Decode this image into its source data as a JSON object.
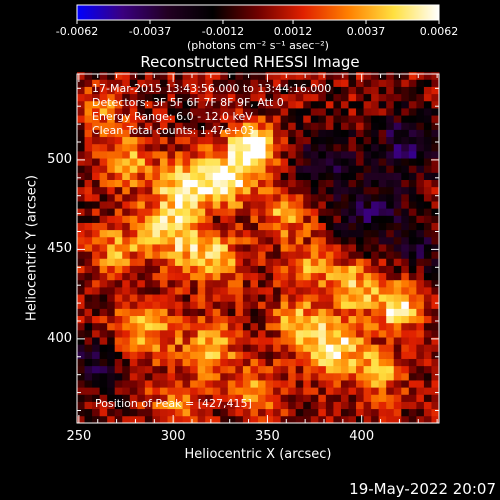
{
  "colorbar": {
    "ticks": [
      "-0.0062",
      "-0.0037",
      "-0.0012",
      "0.0012",
      "0.0037",
      "0.0062"
    ],
    "tick_values": [
      -0.0062,
      -0.0037,
      -0.0012,
      0.0012,
      0.0037,
      0.0062
    ],
    "units": "(photons cm⁻² s⁻¹ asec⁻²)",
    "colors": [
      "#0000ff",
      "#3a0080",
      "#220022",
      "#000000",
      "#700000",
      "#e02000",
      "#ff8000",
      "#ffe040",
      "#ffffff"
    ]
  },
  "chart_data": {
    "type": "heatmap",
    "title": "Reconstructed RHESSI Image",
    "xlabel": "Heliocentric X (arcsec)",
    "ylabel": "Heliocentric Y (arcsec)",
    "xlim": [
      249,
      441
    ],
    "ylim": [
      353,
      548
    ],
    "x_ticks": [
      250,
      300,
      350,
      400
    ],
    "y_ticks": [
      400,
      450,
      500
    ],
    "annotations": [
      "17-Mar-2015 13:43:56.000 to 13:44:16.000",
      "Detectors: 3F 5F 6F 7F 8F 9F, Att 0",
      "Energy Range: 6.0 - 12.0 keV",
      "Clean      Total counts: 1.47e+03"
    ],
    "peak_label": "Position of Peak = [427,415]",
    "peak": [
      427,
      415
    ],
    "value_range": [
      -0.0062,
      0.0062
    ],
    "blobs": [
      {
        "x": 343,
        "y": 508,
        "amp": 1.0,
        "r": 9
      },
      {
        "x": 330,
        "y": 490,
        "amp": 0.8,
        "r": 11
      },
      {
        "x": 308,
        "y": 485,
        "amp": 0.75,
        "r": 12
      },
      {
        "x": 298,
        "y": 460,
        "amp": 0.7,
        "r": 13
      },
      {
        "x": 322,
        "y": 445,
        "amp": 0.6,
        "r": 12
      },
      {
        "x": 360,
        "y": 470,
        "amp": 0.55,
        "r": 10
      },
      {
        "x": 370,
        "y": 440,
        "amp": 0.5,
        "r": 10
      },
      {
        "x": 275,
        "y": 500,
        "amp": 0.55,
        "r": 11
      },
      {
        "x": 268,
        "y": 450,
        "amp": 0.5,
        "r": 10
      },
      {
        "x": 285,
        "y": 405,
        "amp": 0.6,
        "r": 12
      },
      {
        "x": 320,
        "y": 395,
        "amp": 0.55,
        "r": 12
      },
      {
        "x": 345,
        "y": 370,
        "amp": 0.5,
        "r": 11
      },
      {
        "x": 385,
        "y": 395,
        "amp": 0.85,
        "r": 12
      },
      {
        "x": 420,
        "y": 418,
        "amp": 0.9,
        "r": 9
      },
      {
        "x": 395,
        "y": 430,
        "amp": 0.7,
        "r": 10
      },
      {
        "x": 410,
        "y": 380,
        "amp": 0.55,
        "r": 10
      },
      {
        "x": 300,
        "y": 365,
        "amp": 0.45,
        "r": 10
      },
      {
        "x": 365,
        "y": 410,
        "amp": 0.55,
        "r": 9
      },
      {
        "x": 262,
        "y": 530,
        "amp": 0.45,
        "r": 9
      },
      {
        "x": 405,
        "y": 470,
        "amp": -0.5,
        "r": 14
      },
      {
        "x": 425,
        "y": 510,
        "amp": -0.6,
        "r": 12
      },
      {
        "x": 380,
        "y": 500,
        "amp": -0.45,
        "r": 12
      },
      {
        "x": 258,
        "y": 385,
        "amp": -0.5,
        "r": 10
      },
      {
        "x": 432,
        "y": 450,
        "amp": -0.4,
        "r": 9
      },
      {
        "x": 320,
        "y": 470,
        "amp": -0.3,
        "r": 7
      }
    ]
  },
  "footer": {
    "date": "19-May-2022 20:07"
  }
}
